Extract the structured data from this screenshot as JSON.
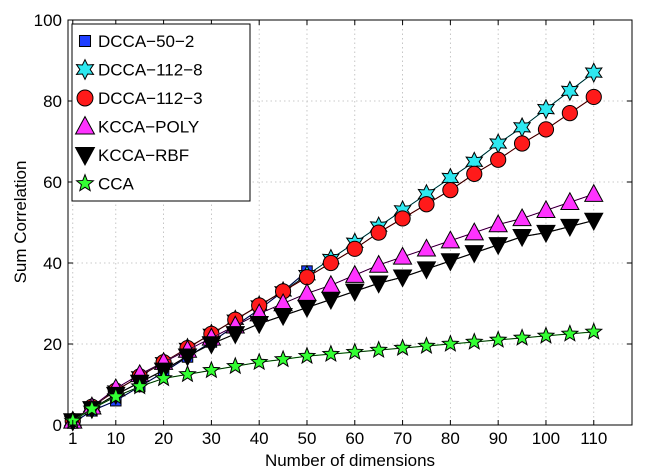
{
  "chart_data": {
    "type": "line",
    "title": "",
    "xlabel": "Number of dimensions",
    "ylabel": "Sum Correlation",
    "xlim": [
      0,
      118
    ],
    "ylim": [
      0,
      100
    ],
    "xticks": [
      1,
      10,
      20,
      30,
      40,
      50,
      60,
      70,
      80,
      90,
      100,
      110
    ],
    "yticks": [
      0,
      20,
      40,
      60,
      80,
      100
    ],
    "grid": true,
    "legend_position": "top-left",
    "series": [
      {
        "name": "DCCA−50−2",
        "marker": "square",
        "color": "#1f3fff",
        "x": [
          1,
          5,
          10,
          15,
          20,
          25,
          30,
          35,
          40,
          45,
          50
        ],
        "y": [
          0.5,
          3.5,
          6,
          9.5,
          13,
          16.8,
          20.5,
          24.5,
          28.5,
          33,
          38
        ]
      },
      {
        "name": "DCCA−112−8",
        "marker": "hexagram",
        "color": "#2ee8f0",
        "x": [
          1,
          5,
          10,
          15,
          20,
          25,
          30,
          35,
          40,
          45,
          50,
          55,
          60,
          65,
          70,
          75,
          80,
          85,
          90,
          95,
          100,
          105,
          110
        ],
        "y": [
          1,
          4.5,
          8.5,
          12,
          15.5,
          19,
          22.5,
          26,
          29.5,
          33,
          37,
          41,
          45,
          49,
          53,
          57,
          61,
          65,
          69.5,
          73.5,
          78,
          82.5,
          87
        ]
      },
      {
        "name": "DCCA−112−3",
        "marker": "circle",
        "color": "#ff1a1a",
        "x": [
          1,
          5,
          10,
          15,
          20,
          25,
          30,
          35,
          40,
          45,
          50,
          55,
          60,
          65,
          70,
          75,
          80,
          85,
          90,
          95,
          100,
          105,
          110
        ],
        "y": [
          1,
          4.5,
          8.5,
          12,
          15.5,
          19,
          22.5,
          26,
          29.5,
          33,
          36.5,
          40,
          43.5,
          47.5,
          51,
          54.5,
          58,
          62,
          65.5,
          69.5,
          73,
          77,
          81
        ]
      },
      {
        "name": "KCCA−POLY",
        "marker": "triangle-up",
        "color": "#ff33ff",
        "x": [
          1,
          5,
          10,
          15,
          20,
          25,
          30,
          35,
          40,
          45,
          50,
          55,
          60,
          65,
          70,
          75,
          80,
          85,
          90,
          95,
          100,
          105,
          110
        ],
        "y": [
          1,
          4.5,
          9,
          12.5,
          15.5,
          18.5,
          21.5,
          24.5,
          27.5,
          30,
          32.5,
          34.5,
          37,
          39.5,
          41.5,
          43.5,
          45.5,
          47.5,
          49.5,
          51,
          53,
          55,
          57
        ]
      },
      {
        "name": "KCCA−RBF",
        "marker": "triangle-down",
        "color": "#000000",
        "x": [
          1,
          5,
          10,
          15,
          20,
          25,
          30,
          35,
          40,
          45,
          50,
          55,
          60,
          65,
          70,
          75,
          80,
          85,
          90,
          95,
          100,
          105,
          110
        ],
        "y": [
          1,
          4,
          7.5,
          10.5,
          13.5,
          17,
          20,
          22.5,
          25,
          27,
          29,
          31,
          33,
          35,
          36.5,
          38.5,
          40.5,
          42.5,
          44.5,
          46.5,
          47.5,
          49,
          50.5
        ]
      },
      {
        "name": "CCA",
        "marker": "star",
        "color": "#33ff33",
        "x": [
          1,
          5,
          10,
          15,
          20,
          25,
          30,
          35,
          40,
          45,
          50,
          55,
          60,
          65,
          70,
          75,
          80,
          85,
          90,
          95,
          100,
          105,
          110
        ],
        "y": [
          1,
          4,
          7,
          9.5,
          11.5,
          12.5,
          13.5,
          14.5,
          15.5,
          16.2,
          17,
          17.5,
          18,
          18.5,
          19,
          19.5,
          20,
          20.5,
          21,
          21.5,
          22,
          22.5,
          23
        ]
      }
    ]
  }
}
